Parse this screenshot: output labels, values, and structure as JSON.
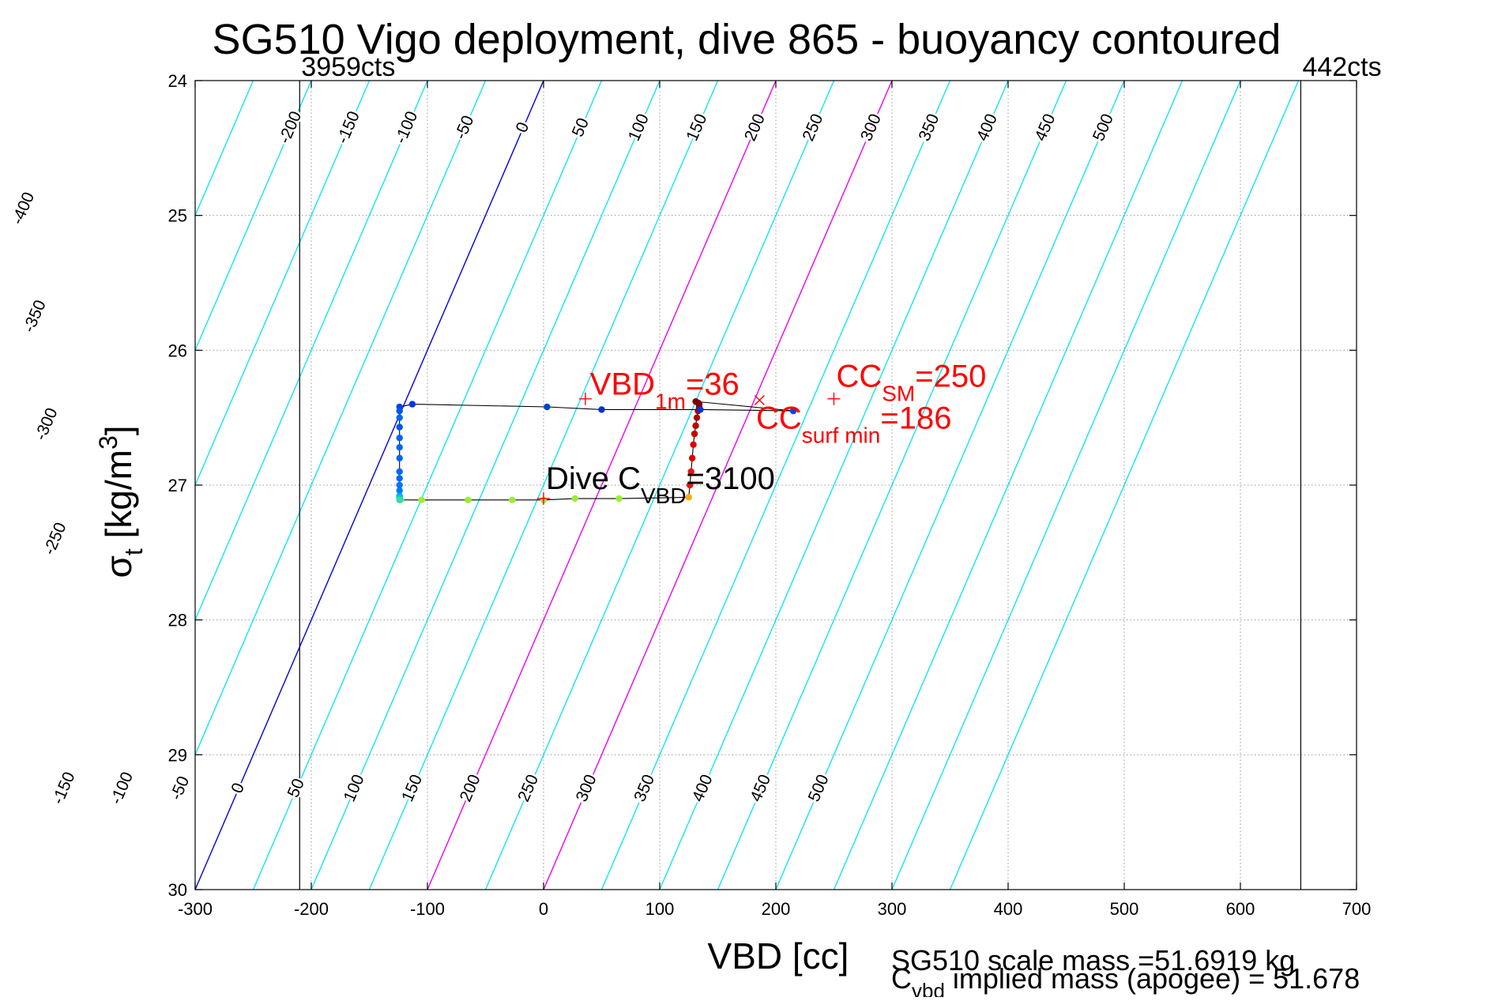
{
  "chart_data": {
    "type": "line",
    "title": "SG510 Vigo deployment, dive 865 - buoyancy contoured",
    "xlabel": "VBD [cc]",
    "ylabel": {
      "main": "σ",
      "sub": "t",
      "rest": " [kg/m",
      "sup": "3",
      "close": "]"
    },
    "xlim": [
      -300,
      700
    ],
    "ylim": [
      24,
      30
    ],
    "y_reversed": true,
    "grid": true,
    "x_ticks": [
      -300,
      -200,
      -100,
      0,
      100,
      200,
      300,
      400,
      500,
      600,
      700
    ],
    "y_ticks": [
      24,
      25,
      26,
      27,
      28,
      29,
      30
    ],
    "vertical_limits": [
      {
        "x": -210,
        "label": "3959cts"
      },
      {
        "x": 652,
        "label": "442cts"
      }
    ],
    "contours": {
      "slope_cc_per_sigma": -50,
      "values": [
        -550,
        -500,
        -450,
        -400,
        -350,
        -300,
        -250,
        -200,
        -150,
        -100,
        -50,
        0,
        50,
        100,
        150,
        200,
        250,
        300,
        350,
        400,
        450,
        500,
        550,
        600,
        650
      ],
      "color": "#00e5ee",
      "highlight": [
        {
          "value": 0,
          "color": "#0000dd"
        },
        {
          "value": 200,
          "color": "#ee00ee"
        },
        {
          "value": 300,
          "color": "#ee00ee"
        }
      ],
      "top_labels": [
        -200,
        -150,
        -100,
        -50,
        0,
        50,
        100,
        150,
        200,
        250,
        300,
        350,
        400,
        450,
        500
      ],
      "top_label_sigma": 24.35,
      "left_labels": [
        {
          "value": -400,
          "sigma": 24.95
        },
        {
          "value": -350,
          "sigma": 25.75
        },
        {
          "value": -300,
          "sigma": 26.55
        },
        {
          "value": -250,
          "sigma": 27.4
        }
      ],
      "bottom_labels": [
        -150,
        -100,
        -50,
        0,
        50,
        100,
        150,
        200,
        250,
        300,
        350,
        400,
        450,
        500
      ],
      "bottom_label_sigma": 29.25
    },
    "dive_track": {
      "x": [
        -123,
        -105,
        -65,
        -27,
        0,
        27,
        65,
        125,
        126,
        127,
        128,
        129,
        130,
        131,
        132,
        133,
        134,
        134,
        133,
        131,
        215,
        135,
        50,
        3,
        -113,
        -124,
        -124,
        -124,
        -124,
        -124,
        -124,
        -124,
        -124,
        -124,
        -124,
        -124,
        -124,
        -124,
        -124,
        -124
      ],
      "y": [
        27.11,
        27.11,
        27.11,
        27.11,
        27.11,
        27.1,
        27.1,
        27.09,
        27.0,
        26.9,
        26.8,
        26.7,
        26.62,
        26.56,
        26.5,
        26.45,
        26.42,
        26.4,
        26.39,
        26.38,
        26.45,
        26.44,
        26.44,
        26.42,
        26.4,
        26.42,
        26.45,
        26.5,
        26.57,
        26.65,
        26.72,
        26.8,
        26.9,
        26.95,
        27.0,
        27.04,
        27.08,
        27.09,
        27.1,
        27.11
      ],
      "point_colors": [
        "#66ee66",
        "#99ee33",
        "#99ee33",
        "#99ee33",
        "#99ee33",
        "#99ee33",
        "#99ee33",
        "#ffaa00",
        "#ee1111",
        "#ee1111",
        "#dd0000",
        "#dd0000",
        "#cc0000",
        "#bb0000",
        "#aa0000",
        "#aa0000",
        "#990000",
        "#880000",
        "#770000",
        "#770000",
        "#0044ee",
        "#0033dd",
        "#0033cc",
        "#0044cc",
        "#0033ee",
        "#0044ee",
        "#0055ee",
        "#0066ee",
        "#0055ee",
        "#0066ee",
        "#0066ee",
        "#0066ee",
        "#0066ff",
        "#0066ff",
        "#0077ff",
        "#0077ff",
        "#0099ff",
        "#00bbee",
        "#00cccc",
        "#33ddaa"
      ]
    },
    "markers": [
      {
        "symbol": "+",
        "x": 36,
        "y": 26.36,
        "color": "#ff0000"
      },
      {
        "symbol": "+",
        "x": 250,
        "y": 26.36,
        "color": "#ff0000"
      },
      {
        "symbol": "×",
        "x": 186,
        "y": 26.37,
        "color": "#ff0000"
      },
      {
        "symbol": "+",
        "x": 0,
        "y": 27.1,
        "color": "#ff0000"
      }
    ],
    "annotations": [
      {
        "id": "vbd",
        "x": 40,
        "y": 26.33,
        "color": "#ff0000",
        "main": "VBD",
        "sub": "1m",
        "rest": "=36"
      },
      {
        "id": "cc-sm",
        "x": 252,
        "y": 26.27,
        "color": "#ff0000",
        "main": "CC",
        "sub": "SM",
        "rest": "=250"
      },
      {
        "id": "cc-surf",
        "x": 183,
        "y": 26.58,
        "color": "#ff0000",
        "main": "CC",
        "sub": "surf min",
        "rest": "=186"
      },
      {
        "id": "dive-c",
        "x": 2,
        "y": 27.03,
        "color": "#000000",
        "main": "Dive C",
        "sub": "VBD",
        "rest": "=3100"
      }
    ],
    "footnotes": {
      "line1": "SG510 scale mass =51.6919 kg",
      "line2": {
        "main": "C",
        "sub": "vbd",
        "rest": " implied mass (apogee) = 51.678"
      }
    }
  }
}
